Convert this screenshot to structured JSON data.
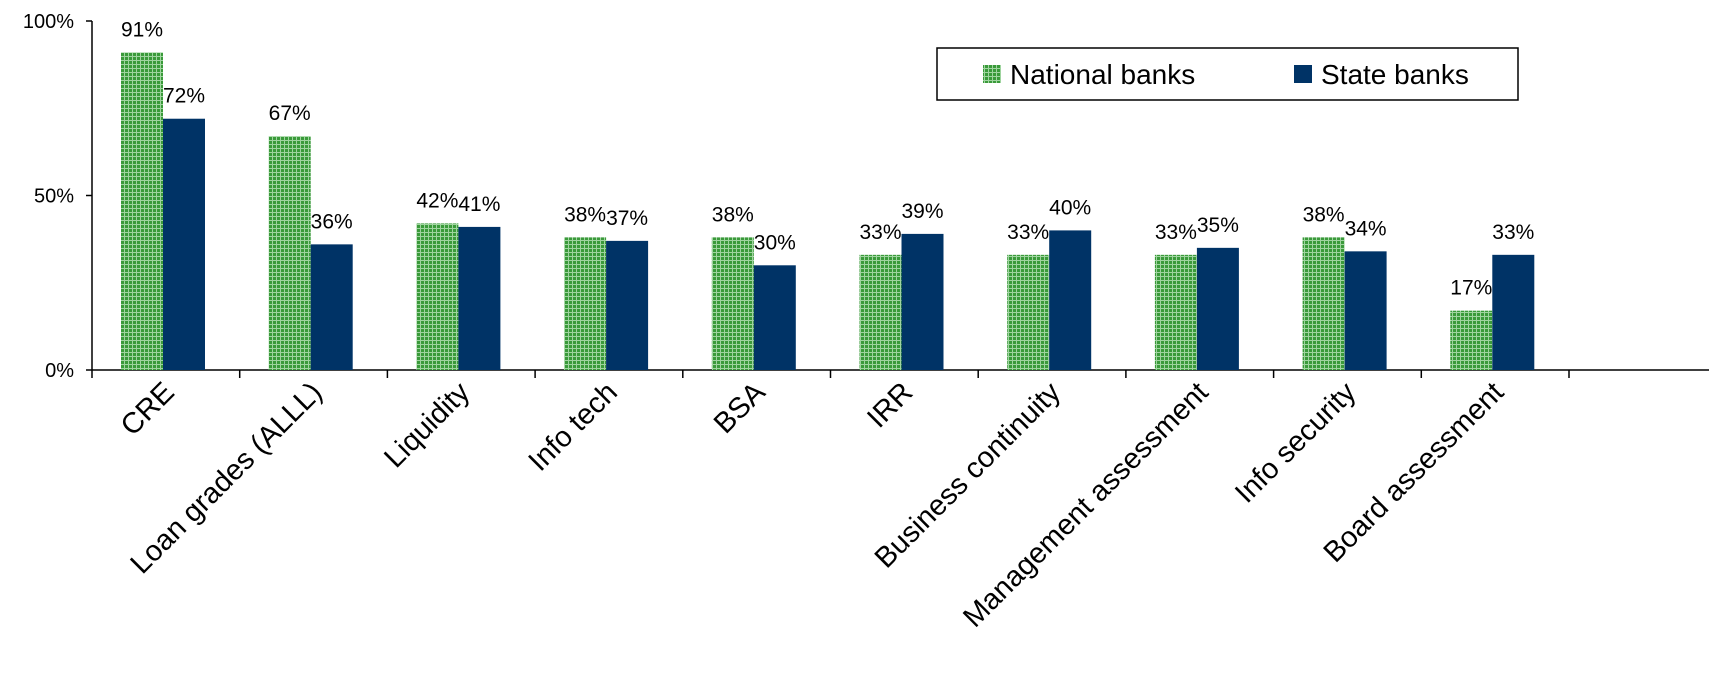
{
  "chart_data": {
    "type": "bar",
    "title": "",
    "xlabel": "",
    "ylabel": "",
    "ylim": [
      0,
      100
    ],
    "yticks": [
      0,
      50,
      100
    ],
    "ytick_labels": [
      "0%",
      "50%",
      "100%"
    ],
    "grid": false,
    "legend_position": "top-right",
    "categories": [
      "CRE",
      "Loan grades (ALLL)",
      "Liquidity",
      "Info tech",
      "BSA",
      "IRR",
      "Business continuity",
      "Management assessment",
      "Info security",
      "Board assessment"
    ],
    "series": [
      {
        "name": "National banks",
        "values": [
          91,
          67,
          42,
          38,
          38,
          33,
          33,
          33,
          38,
          17
        ],
        "labels": [
          "91%",
          "67%",
          "42%",
          "38%",
          "38%",
          "33%",
          "33%",
          "33%",
          "38%",
          "17%"
        ],
        "color": "#2e8b2e",
        "pattern": "grid"
      },
      {
        "name": "State banks",
        "values": [
          72,
          36,
          41,
          37,
          30,
          39,
          40,
          35,
          34,
          33
        ],
        "labels": [
          "72%",
          "36%",
          "41%",
          "37%",
          "30%",
          "39%",
          "40%",
          "35%",
          "34%",
          "33%"
        ],
        "color": "#003366",
        "pattern": "solid"
      }
    ]
  }
}
